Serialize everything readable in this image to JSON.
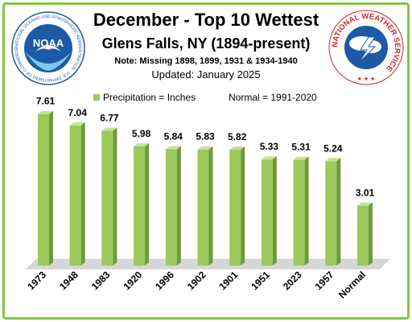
{
  "header": {
    "title": "December - Top 10 Wettest",
    "subtitle": "Glens Falls, NY (1894-present)",
    "note": "Note: Missing 1898, 1899, 1931 & 1934-1940",
    "updated": "Updated: January 2025"
  },
  "logos": {
    "noaa_text": "NOAA",
    "noaa_ring_text": "NATIONAL OCEANIC AND ATMOSPHERIC ADMINISTRATION · U.S. DEPARTMENT OF COMMERCE",
    "nws_ring_text": "NATIONAL WEATHER SERVICE"
  },
  "colors": {
    "bar_front": "#9bc95a",
    "bar_top": "#c5e39a",
    "bar_side": "#6f9a3a",
    "border": "#7fc844",
    "noaa_blue": "#1d5aa6",
    "nws_red": "#d1262c"
  },
  "chart_data": {
    "type": "bar",
    "categories": [
      "1973",
      "1948",
      "1983",
      "1920",
      "1996",
      "1902",
      "1901",
      "1951",
      "2023",
      "1957",
      "Normal"
    ],
    "values": [
      7.61,
      7.04,
      6.77,
      5.98,
      5.84,
      5.83,
      5.82,
      5.33,
      5.31,
      5.24,
      3.01
    ],
    "data_labels": [
      "7.61",
      "7.04",
      "6.77",
      "5.98",
      "5.84",
      "5.83",
      "5.82",
      "5.33",
      "5.31",
      "5.24",
      "3.01"
    ],
    "legend": [
      "Precipitation = Inches",
      "Normal = 1991-2020"
    ],
    "legend_position": "top",
    "ylim": [
      0,
      8
    ],
    "grid": false
  }
}
